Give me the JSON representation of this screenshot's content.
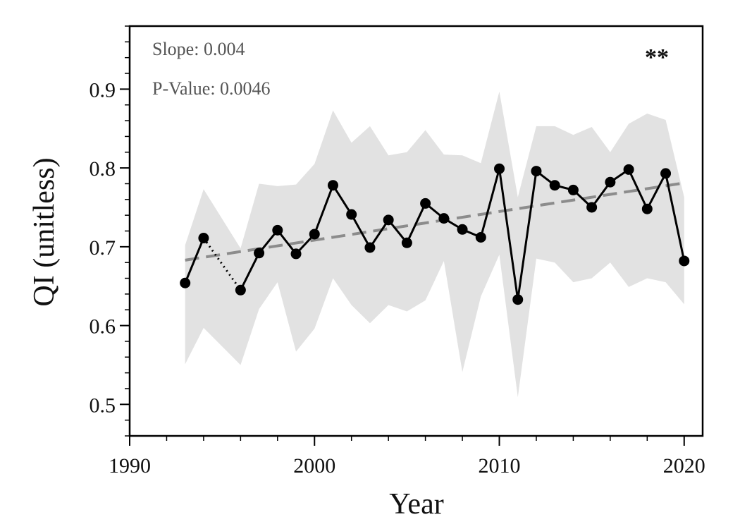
{
  "chart_data": {
    "type": "line",
    "title": "",
    "xlabel": "Year",
    "ylabel": "QI (unitless)",
    "xlim": [
      1990,
      2021
    ],
    "ylim": [
      0.46,
      0.98
    ],
    "x_ticks": [
      1990,
      2000,
      2010,
      2020
    ],
    "y_ticks": [
      0.5,
      0.6,
      0.7,
      0.8,
      0.9
    ],
    "annotations": {
      "slope": "Slope: 0.004",
      "p_value": "P-Value: 0.0046",
      "significance": "**"
    },
    "series": [
      {
        "x": [
          1993,
          1994,
          1996,
          1997,
          1998,
          1999,
          2000,
          2001,
          2002,
          2003,
          2004,
          2005,
          2006,
          2007,
          2008,
          2009,
          2010,
          2011,
          2012,
          2013,
          2014,
          2015,
          2016,
          2017,
          2018,
          2019,
          2020
        ],
        "values": [
          0.654,
          0.711,
          0.645,
          0.692,
          0.721,
          0.691,
          0.716,
          0.778,
          0.741,
          0.699,
          0.734,
          0.705,
          0.755,
          0.736,
          0.722,
          0.712,
          0.799,
          0.633,
          0.796,
          0.778,
          0.772,
          0.75,
          0.782,
          0.798,
          0.748,
          0.793,
          0.682
        ],
        "color": "#000000",
        "gap_after_index": 1
      }
    ],
    "band": {
      "x": [
        1993,
        1994,
        1996,
        1997,
        1998,
        1999,
        2000,
        2001,
        2002,
        2003,
        2004,
        2005,
        2006,
        2007,
        2008,
        2009,
        2010,
        2011,
        2012,
        2013,
        2014,
        2015,
        2016,
        2017,
        2018,
        2019,
        2020
      ],
      "upper": [
        0.702,
        0.773,
        0.698,
        0.78,
        0.777,
        0.779,
        0.805,
        0.873,
        0.832,
        0.853,
        0.816,
        0.82,
        0.848,
        0.817,
        0.816,
        0.806,
        0.897,
        0.763,
        0.853,
        0.853,
        0.842,
        0.852,
        0.82,
        0.856,
        0.869,
        0.861,
        0.763
      ],
      "lower": [
        0.551,
        0.597,
        0.55,
        0.621,
        0.655,
        0.567,
        0.596,
        0.66,
        0.626,
        0.603,
        0.626,
        0.618,
        0.632,
        0.682,
        0.541,
        0.637,
        0.69,
        0.509,
        0.685,
        0.68,
        0.655,
        0.66,
        0.68,
        0.649,
        0.66,
        0.655,
        0.627
      ],
      "color": "#e2e2e2"
    },
    "trend": {
      "x": [
        1993,
        2020
      ],
      "y": [
        0.683,
        0.781
      ],
      "color": "#8c8c8c"
    },
    "grid": false
  }
}
